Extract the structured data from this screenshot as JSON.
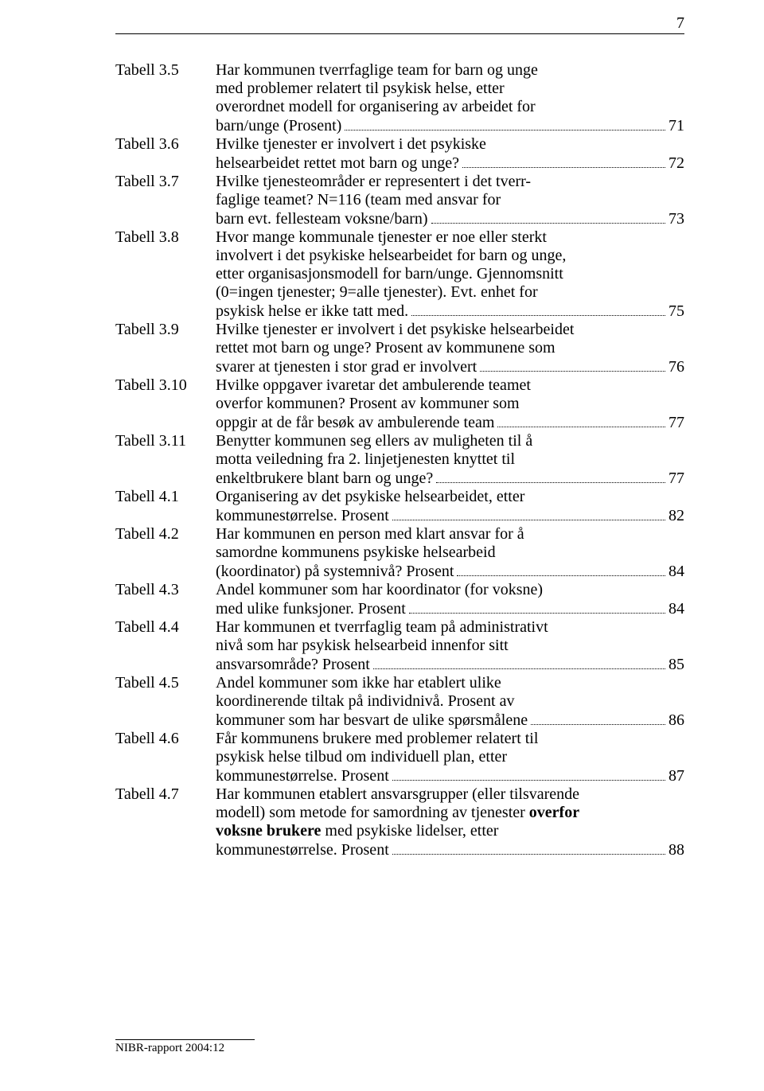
{
  "page_number": "7",
  "footer": "NIBR-rapport 2004:12",
  "entries": [
    {
      "label": "Tabell 3.5",
      "lines": [
        "Har kommunen tverrfaglige team for barn og unge",
        "med problemer relatert til psykisk helse, etter",
        "overordnet modell for organisering av arbeidet for"
      ],
      "trailing": "barn/unge (Prosent)",
      "page": "71"
    },
    {
      "label": "Tabell 3.6",
      "lines": [
        "Hvilke tjenester er involvert i det psykiske"
      ],
      "trailing": "helsearbeidet rettet mot barn og unge?",
      "page": "72"
    },
    {
      "label": "Tabell 3.7",
      "lines": [
        "Hvilke tjenesteområder er representert i det tverr-",
        "faglige teamet? N=116 (team med ansvar for"
      ],
      "trailing": "barn evt. fellesteam voksne/barn)",
      "page": "73"
    },
    {
      "label": "Tabell 3.8",
      "lines": [
        "Hvor mange kommunale tjenester er noe eller sterkt",
        "involvert i det psykiske helsearbeidet for barn og unge,",
        "etter organisasjonsmodell for barn/unge. Gjennomsnitt",
        "(0=ingen tjenester; 9=alle tjenester). Evt. enhet for"
      ],
      "trailing": "psykisk helse er ikke tatt med.",
      "page": "75"
    },
    {
      "label": "Tabell 3.9",
      "lines": [
        "Hvilke tjenester er involvert i det psykiske helsearbeidet",
        "rettet mot barn og unge? Prosent av kommunene som"
      ],
      "trailing": "svarer at tjenesten i stor grad er involvert",
      "page": "76"
    },
    {
      "label": "Tabell 3.10",
      "lines": [
        "Hvilke oppgaver ivaretar det ambulerende teamet",
        "overfor kommunen? Prosent av kommuner som"
      ],
      "trailing": "oppgir at de får besøk av ambulerende team",
      "page": "77"
    },
    {
      "label": "Tabell 3.11",
      "lines": [
        "Benytter kommunen seg ellers av muligheten til å",
        "motta veiledning fra 2. linjetjenesten knyttet til"
      ],
      "trailing": "enkeltbrukere blant barn og unge?",
      "page": "77"
    },
    {
      "label": "Tabell 4.1",
      "lines": [
        "Organisering av det psykiske helsearbeidet, etter"
      ],
      "trailing": "kommunestørrelse. Prosent",
      "page": "82"
    },
    {
      "label": "Tabell 4.2",
      "lines": [
        "Har kommunen en person med klart ansvar for å",
        "samordne kommunens psykiske helsearbeid"
      ],
      "trailing": "(koordinator) på systemnivå? Prosent",
      "page": "84"
    },
    {
      "label": "Tabell 4.3",
      "lines": [
        "Andel kommuner som har koordinator (for voksne)"
      ],
      "trailing": "med ulike funksjoner. Prosent",
      "page": "84"
    },
    {
      "label": "Tabell 4.4",
      "lines": [
        "Har kommunen et tverrfaglig team på administrativt",
        "nivå som har psykisk helsearbeid innenfor sitt"
      ],
      "trailing": "ansvarsområde? Prosent",
      "page": "85"
    },
    {
      "label": "Tabell 4.5",
      "lines": [
        "Andel kommuner som ikke har etablert ulike",
        "koordinerende tiltak på individnivå. Prosent av"
      ],
      "trailing": "kommuner som har besvart de ulike spørsmålene",
      "page": "86"
    },
    {
      "label": "Tabell 4.6",
      "lines": [
        "Får kommunens brukere med problemer relatert til",
        "psykisk helse tilbud om individuell plan, etter"
      ],
      "trailing": "kommunestørrelse. Prosent",
      "page": "87"
    },
    {
      "label": "Tabell 4.7",
      "lines": [
        "Har kommunen etablert ansvarsgrupper (eller tilsvarende",
        {
          "text": "modell) som metode for samordning av tjenester ",
          "append_bold": "overfor"
        },
        {
          "bold": "voksne brukere",
          "rest": " med psykiske lidelser, etter"
        }
      ],
      "trailing": "kommunestørrelse. Prosent",
      "page": "88"
    }
  ]
}
